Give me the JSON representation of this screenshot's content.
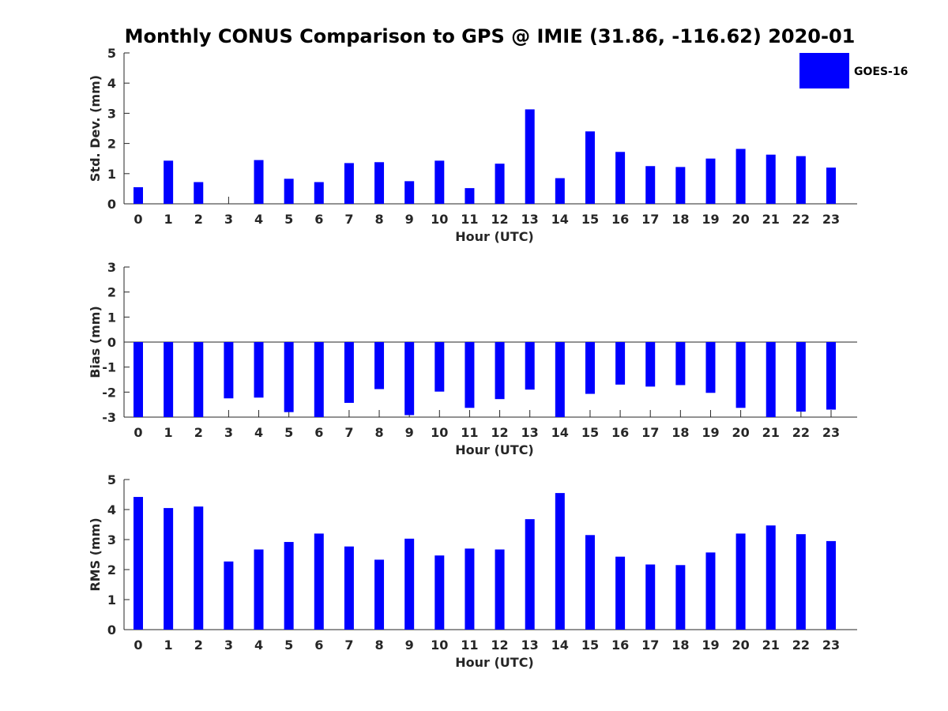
{
  "title": "Monthly CONUS Comparison to GPS @ IMIE (31.86, -116.62) 2020-01",
  "legend": {
    "label": "GOES-16",
    "color": "#0000ff"
  },
  "chart_data": [
    {
      "type": "bar",
      "name": "std-dev",
      "xlabel": "Hour (UTC)",
      "ylabel": "Std. Dev. (mm)",
      "ylim": [
        0,
        5
      ],
      "yticks": [
        0,
        1,
        2,
        3,
        4,
        5
      ],
      "categories": [
        "0",
        "1",
        "2",
        "3",
        "4",
        "5",
        "6",
        "7",
        "8",
        "9",
        "10",
        "11",
        "12",
        "13",
        "14",
        "15",
        "16",
        "17",
        "18",
        "19",
        "20",
        "21",
        "22",
        "23"
      ],
      "series": [
        {
          "name": "GOES-16",
          "color": "#0000ff",
          "values": [
            0.55,
            1.43,
            0.72,
            0.0,
            1.45,
            0.83,
            0.72,
            1.35,
            1.38,
            0.75,
            1.43,
            0.52,
            1.33,
            3.13,
            0.85,
            2.4,
            1.72,
            1.25,
            1.22,
            1.5,
            1.82,
            1.63,
            1.58,
            1.2
          ]
        }
      ]
    },
    {
      "type": "bar",
      "name": "bias",
      "xlabel": "Hour (UTC)",
      "ylabel": "Bias (mm)",
      "ylim": [
        -3,
        3
      ],
      "yticks": [
        -3,
        -2,
        -1,
        0,
        1,
        2,
        3
      ],
      "categories": [
        "0",
        "1",
        "2",
        "3",
        "4",
        "5",
        "6",
        "7",
        "8",
        "9",
        "10",
        "11",
        "12",
        "13",
        "14",
        "15",
        "16",
        "17",
        "18",
        "19",
        "20",
        "21",
        "22",
        "23"
      ],
      "series": [
        {
          "name": "GOES-16",
          "color": "#0000ff",
          "values": [
            -3.0,
            -3.0,
            -3.0,
            -2.25,
            -2.22,
            -2.8,
            -3.0,
            -2.43,
            -1.88,
            -2.92,
            -1.98,
            -2.63,
            -2.28,
            -1.9,
            -3.0,
            -2.07,
            -1.7,
            -1.78,
            -1.72,
            -2.03,
            -2.63,
            -3.0,
            -2.78,
            -2.7
          ]
        }
      ]
    },
    {
      "type": "bar",
      "name": "rms",
      "xlabel": "Hour (UTC)",
      "ylabel": "RMS (mm)",
      "ylim": [
        0,
        5
      ],
      "yticks": [
        0,
        1,
        2,
        3,
        4,
        5
      ],
      "categories": [
        "0",
        "1",
        "2",
        "3",
        "4",
        "5",
        "6",
        "7",
        "8",
        "9",
        "10",
        "11",
        "12",
        "13",
        "14",
        "15",
        "16",
        "17",
        "18",
        "19",
        "20",
        "21",
        "22",
        "23"
      ],
      "series": [
        {
          "name": "GOES-16",
          "color": "#0000ff",
          "values": [
            4.42,
            4.05,
            4.1,
            2.27,
            2.67,
            2.92,
            3.2,
            2.77,
            2.33,
            3.03,
            2.47,
            2.7,
            2.67,
            3.68,
            4.55,
            3.15,
            2.43,
            2.17,
            2.15,
            2.57,
            3.2,
            3.47,
            3.18,
            2.95
          ]
        }
      ]
    }
  ]
}
